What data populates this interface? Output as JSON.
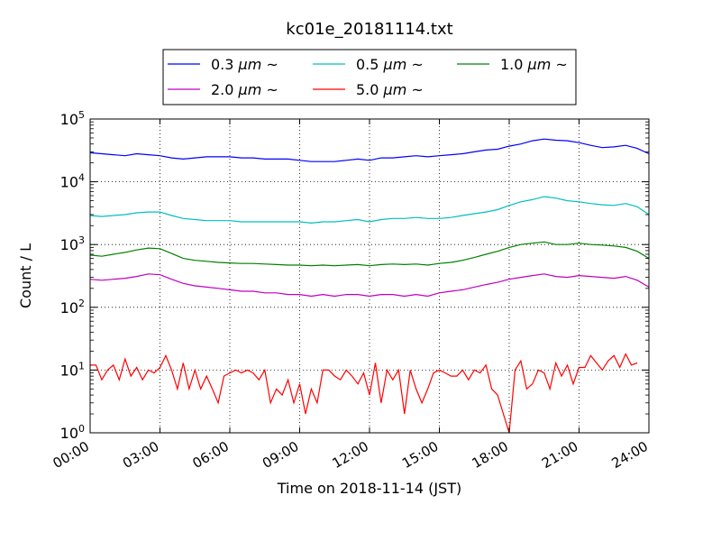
{
  "chart_data": {
    "type": "line",
    "title": "kc01e_20181114.txt",
    "xlabel": "Time on 2018-11-14 (JST)",
    "ylabel": "Count / L",
    "x_unit": "hours",
    "xlim": [
      0,
      24
    ],
    "ylim": [
      1,
      100000
    ],
    "yscale": "log",
    "grid": true,
    "legend_position": "top-center-outside",
    "x_ticks": [
      0,
      3,
      6,
      9,
      12,
      15,
      18,
      21,
      24
    ],
    "x_tick_labels": [
      "00:00",
      "03:00",
      "06:00",
      "09:00",
      "12:00",
      "15:00",
      "18:00",
      "21:00",
      "24:00"
    ],
    "y_ticks": [
      1,
      10,
      100,
      1000,
      10000,
      100000
    ],
    "y_tick_base": "10",
    "y_tick_exponents": [
      "0",
      "1",
      "2",
      "3",
      "4",
      "5"
    ],
    "series": [
      {
        "name": "0.3 μm ~",
        "label_main": "0.3 ",
        "label_unit": "μm",
        "label_tail": " ~",
        "color": "#0000ff",
        "points": [
          [
            0,
            29000
          ],
          [
            0.5,
            28000
          ],
          [
            1,
            27000
          ],
          [
            1.5,
            26000
          ],
          [
            2,
            28000
          ],
          [
            2.5,
            27000
          ],
          [
            3,
            26000
          ],
          [
            3.5,
            24000
          ],
          [
            4,
            23000
          ],
          [
            4.5,
            24000
          ],
          [
            5,
            25000
          ],
          [
            5.5,
            25000
          ],
          [
            6,
            25000
          ],
          [
            6.5,
            24000
          ],
          [
            7,
            24000
          ],
          [
            7.5,
            23000
          ],
          [
            8,
            23000
          ],
          [
            8.5,
            23000
          ],
          [
            9,
            22000
          ],
          [
            9.5,
            21000
          ],
          [
            10,
            21000
          ],
          [
            10.5,
            21000
          ],
          [
            11,
            22000
          ],
          [
            11.5,
            23000
          ],
          [
            12,
            22000
          ],
          [
            12.5,
            24000
          ],
          [
            13,
            24000
          ],
          [
            13.5,
            25000
          ],
          [
            14,
            26000
          ],
          [
            14.5,
            25000
          ],
          [
            15,
            26000
          ],
          [
            15.5,
            27000
          ],
          [
            16,
            28000
          ],
          [
            16.5,
            30000
          ],
          [
            17,
            32000
          ],
          [
            17.5,
            33000
          ],
          [
            18,
            37000
          ],
          [
            18.5,
            40000
          ],
          [
            19,
            45000
          ],
          [
            19.5,
            48000
          ],
          [
            20,
            46000
          ],
          [
            20.5,
            45000
          ],
          [
            21,
            42000
          ],
          [
            21.5,
            38000
          ],
          [
            22,
            35000
          ],
          [
            22.5,
            36000
          ],
          [
            23,
            38000
          ],
          [
            23.5,
            34000
          ],
          [
            24,
            28000
          ]
        ]
      },
      {
        "name": "0.5 μm ~",
        "label_main": "0.5 ",
        "label_unit": "μm",
        "label_tail": " ~",
        "color": "#00bfbf",
        "points": [
          [
            0,
            2900
          ],
          [
            0.5,
            2800
          ],
          [
            1,
            2900
          ],
          [
            1.5,
            3000
          ],
          [
            2,
            3200
          ],
          [
            2.5,
            3300
          ],
          [
            3,
            3300
          ],
          [
            3.5,
            2900
          ],
          [
            4,
            2600
          ],
          [
            4.5,
            2500
          ],
          [
            5,
            2400
          ],
          [
            5.5,
            2400
          ],
          [
            6,
            2400
          ],
          [
            6.5,
            2300
          ],
          [
            7,
            2300
          ],
          [
            7.5,
            2300
          ],
          [
            8,
            2300
          ],
          [
            8.5,
            2300
          ],
          [
            9,
            2300
          ],
          [
            9.5,
            2200
          ],
          [
            10,
            2300
          ],
          [
            10.5,
            2300
          ],
          [
            11,
            2400
          ],
          [
            11.5,
            2500
          ],
          [
            12,
            2300
          ],
          [
            12.5,
            2500
          ],
          [
            13,
            2600
          ],
          [
            13.5,
            2600
          ],
          [
            14,
            2700
          ],
          [
            14.5,
            2600
          ],
          [
            15,
            2600
          ],
          [
            15.5,
            2700
          ],
          [
            16,
            2900
          ],
          [
            16.5,
            3100
          ],
          [
            17,
            3300
          ],
          [
            17.5,
            3600
          ],
          [
            18,
            4200
          ],
          [
            18.5,
            4800
          ],
          [
            19,
            5200
          ],
          [
            19.5,
            5800
          ],
          [
            20,
            5500
          ],
          [
            20.5,
            5000
          ],
          [
            21,
            4800
          ],
          [
            21.5,
            4500
          ],
          [
            22,
            4300
          ],
          [
            22.5,
            4200
          ],
          [
            23,
            4500
          ],
          [
            23.5,
            4000
          ],
          [
            24,
            3000
          ]
        ]
      },
      {
        "name": "1.0 μm ~",
        "label_main": "1.0 ",
        "label_unit": "μm",
        "label_tail": " ~",
        "color": "#008000",
        "points": [
          [
            0,
            680
          ],
          [
            0.5,
            650
          ],
          [
            1,
            700
          ],
          [
            1.5,
            750
          ],
          [
            2,
            820
          ],
          [
            2.5,
            880
          ],
          [
            3,
            860
          ],
          [
            3.5,
            720
          ],
          [
            4,
            600
          ],
          [
            4.5,
            560
          ],
          [
            5,
            540
          ],
          [
            5.5,
            520
          ],
          [
            6,
            510
          ],
          [
            6.5,
            500
          ],
          [
            7,
            500
          ],
          [
            7.5,
            490
          ],
          [
            8,
            480
          ],
          [
            8.5,
            470
          ],
          [
            9,
            470
          ],
          [
            9.5,
            460
          ],
          [
            10,
            470
          ],
          [
            10.5,
            460
          ],
          [
            11,
            470
          ],
          [
            11.5,
            480
          ],
          [
            12,
            460
          ],
          [
            12.5,
            480
          ],
          [
            13,
            490
          ],
          [
            13.5,
            480
          ],
          [
            14,
            490
          ],
          [
            14.5,
            470
          ],
          [
            15,
            500
          ],
          [
            15.5,
            520
          ],
          [
            16,
            560
          ],
          [
            16.5,
            620
          ],
          [
            17,
            700
          ],
          [
            17.5,
            780
          ],
          [
            18,
            900
          ],
          [
            18.5,
            1000
          ],
          [
            19,
            1050
          ],
          [
            19.5,
            1100
          ],
          [
            20,
            1000
          ],
          [
            20.5,
            1000
          ],
          [
            21,
            1050
          ],
          [
            21.5,
            1000
          ],
          [
            22,
            980
          ],
          [
            22.5,
            950
          ],
          [
            23,
            900
          ],
          [
            23.5,
            780
          ],
          [
            24,
            600
          ]
        ]
      },
      {
        "name": "2.0 μm ~",
        "label_main": "2.0 ",
        "label_unit": "μm",
        "label_tail": " ~",
        "color": "#bf00bf",
        "points": [
          [
            0,
            280
          ],
          [
            0.5,
            270
          ],
          [
            1,
            280
          ],
          [
            1.5,
            290
          ],
          [
            2,
            310
          ],
          [
            2.5,
            340
          ],
          [
            3,
            330
          ],
          [
            3.5,
            280
          ],
          [
            4,
            240
          ],
          [
            4.5,
            220
          ],
          [
            5,
            210
          ],
          [
            5.5,
            200
          ],
          [
            6,
            190
          ],
          [
            6.5,
            180
          ],
          [
            7,
            180
          ],
          [
            7.5,
            170
          ],
          [
            8,
            170
          ],
          [
            8.5,
            160
          ],
          [
            9,
            160
          ],
          [
            9.5,
            150
          ],
          [
            10,
            160
          ],
          [
            10.5,
            150
          ],
          [
            11,
            160
          ],
          [
            11.5,
            160
          ],
          [
            12,
            150
          ],
          [
            12.5,
            160
          ],
          [
            13,
            160
          ],
          [
            13.5,
            150
          ],
          [
            14,
            160
          ],
          [
            14.5,
            150
          ],
          [
            15,
            170
          ],
          [
            15.5,
            180
          ],
          [
            16,
            190
          ],
          [
            16.5,
            210
          ],
          [
            17,
            230
          ],
          [
            17.5,
            250
          ],
          [
            18,
            280
          ],
          [
            18.5,
            300
          ],
          [
            19,
            320
          ],
          [
            19.5,
            340
          ],
          [
            20,
            310
          ],
          [
            20.5,
            300
          ],
          [
            21,
            320
          ],
          [
            21.5,
            310
          ],
          [
            22,
            300
          ],
          [
            22.5,
            290
          ],
          [
            23,
            310
          ],
          [
            23.5,
            270
          ],
          [
            24,
            210
          ]
        ]
      },
      {
        "name": "5.0 μm ~",
        "label_main": "5.0 ",
        "label_unit": "μm",
        "label_tail": " ~",
        "color": "#ff0000",
        "points": [
          [
            0,
            12
          ],
          [
            0.25,
            12
          ],
          [
            0.5,
            7
          ],
          [
            0.75,
            10
          ],
          [
            1,
            12
          ],
          [
            1.25,
            7
          ],
          [
            1.5,
            15
          ],
          [
            1.75,
            8
          ],
          [
            2,
            11
          ],
          [
            2.25,
            7
          ],
          [
            2.5,
            10
          ],
          [
            2.75,
            9
          ],
          [
            3,
            11
          ],
          [
            3.25,
            17
          ],
          [
            3.5,
            10
          ],
          [
            3.75,
            5
          ],
          [
            4,
            13
          ],
          [
            4.25,
            5
          ],
          [
            4.5,
            10
          ],
          [
            4.75,
            5
          ],
          [
            5,
            8
          ],
          [
            5.25,
            5
          ],
          [
            5.5,
            3
          ],
          [
            5.75,
            8
          ],
          [
            6,
            9
          ],
          [
            6.25,
            10
          ],
          [
            6.5,
            9
          ],
          [
            6.75,
            10
          ],
          [
            7,
            9
          ],
          [
            7.25,
            7
          ],
          [
            7.5,
            10
          ],
          [
            7.75,
            3
          ],
          [
            8,
            5
          ],
          [
            8.25,
            4
          ],
          [
            8.5,
            7
          ],
          [
            8.75,
            3
          ],
          [
            9,
            6
          ],
          [
            9.25,
            2
          ],
          [
            9.5,
            5
          ],
          [
            9.75,
            3
          ],
          [
            10,
            10
          ],
          [
            10.25,
            10
          ],
          [
            10.5,
            8
          ],
          [
            10.75,
            7
          ],
          [
            11,
            10
          ],
          [
            11.25,
            8
          ],
          [
            11.5,
            6
          ],
          [
            11.75,
            9
          ],
          [
            12,
            4
          ],
          [
            12.25,
            13
          ],
          [
            12.5,
            3
          ],
          [
            12.75,
            10
          ],
          [
            13,
            7
          ],
          [
            13.25,
            10
          ],
          [
            13.5,
            2
          ],
          [
            13.75,
            10
          ],
          [
            14,
            5
          ],
          [
            14.25,
            3
          ],
          [
            14.5,
            5
          ],
          [
            14.75,
            9
          ],
          [
            15,
            10
          ],
          [
            15.25,
            9
          ],
          [
            15.5,
            8
          ],
          [
            15.75,
            8
          ],
          [
            16,
            10
          ],
          [
            16.25,
            7
          ],
          [
            16.5,
            10
          ],
          [
            16.75,
            9
          ],
          [
            17,
            12
          ],
          [
            17.25,
            5
          ],
          [
            17.5,
            4
          ],
          [
            17.75,
            2
          ],
          [
            18,
            1
          ],
          [
            18.25,
            10
          ],
          [
            18.5,
            14
          ],
          [
            18.75,
            5
          ],
          [
            19,
            6
          ],
          [
            19.25,
            10
          ],
          [
            19.5,
            9
          ],
          [
            19.75,
            5
          ],
          [
            20,
            13
          ],
          [
            20.25,
            8
          ],
          [
            20.5,
            12
          ],
          [
            20.75,
            6
          ],
          [
            21,
            11
          ],
          [
            21.25,
            11
          ],
          [
            21.5,
            17
          ],
          [
            21.75,
            13
          ],
          [
            22,
            10
          ],
          [
            22.25,
            14
          ],
          [
            22.5,
            17
          ],
          [
            22.75,
            11
          ],
          [
            23,
            18
          ],
          [
            23.25,
            12
          ],
          [
            23.5,
            13
          ]
        ]
      }
    ]
  }
}
